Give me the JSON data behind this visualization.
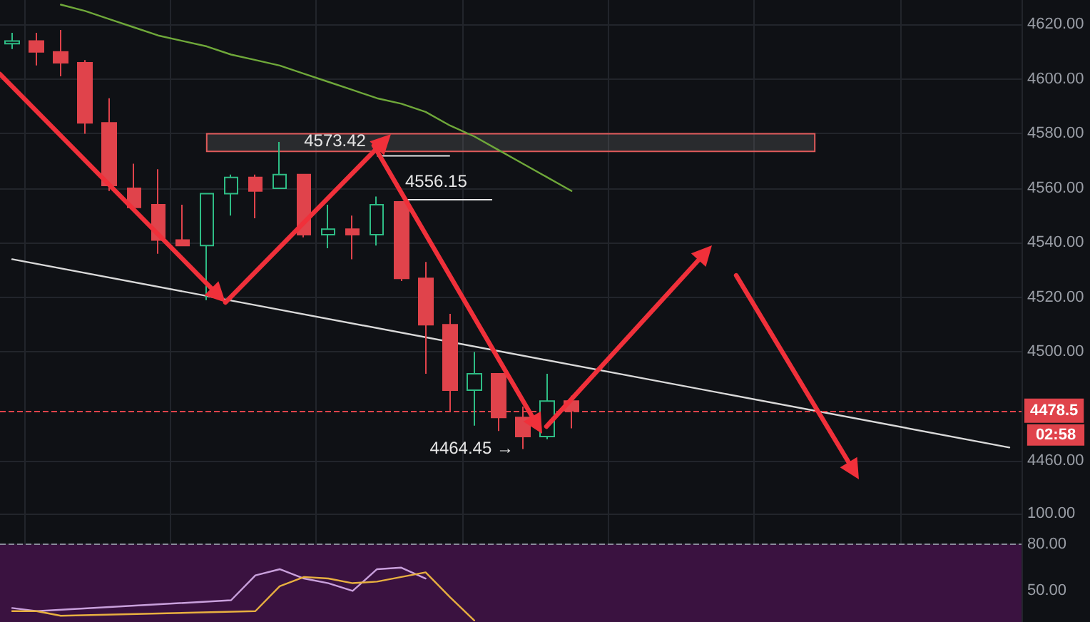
{
  "chart_data": [
    {
      "type": "candlestick",
      "categories": [
        null,
        null,
        null,
        null,
        null,
        null,
        null,
        null,
        null,
        null,
        null,
        null,
        null,
        null,
        null,
        null,
        null,
        null,
        null,
        null,
        null,
        null,
        null,
        null,
        null,
        null,
        null,
        null,
        null,
        null,
        null,
        null,
        null,
        null,
        null,
        null,
        null,
        null,
        null,
        null,
        null,
        null
      ],
      "ohlc": [
        [
          4613,
          4617,
          4611,
          4614
        ],
        [
          4614,
          4617,
          4605,
          4610
        ],
        [
          4610,
          4618,
          4601,
          4606
        ],
        [
          4606,
          4607,
          4580,
          4584
        ],
        [
          4584,
          4593,
          4559,
          4561
        ],
        [
          4560,
          4569,
          4553,
          4553
        ],
        [
          4554,
          4567,
          4536,
          4541
        ],
        [
          4541,
          4554,
          4539,
          4539
        ],
        [
          4539,
          4558,
          4519,
          4558
        ],
        [
          4558,
          4565,
          4550,
          4564
        ],
        [
          4564,
          4565,
          4549,
          4559
        ],
        [
          4560,
          4577,
          4560,
          4565
        ],
        [
          4565,
          4565,
          4542,
          4543
        ],
        [
          4543,
          4554,
          4538,
          4545
        ],
        [
          4545,
          4550,
          4534,
          4543
        ],
        [
          4543,
          4557,
          4539,
          4554
        ],
        [
          4555,
          4555,
          4526,
          4527
        ],
        [
          4527,
          4533,
          4492,
          4510
        ],
        [
          4510,
          4514,
          4478,
          4486
        ],
        [
          4486,
          4500,
          4473,
          4492
        ],
        [
          4492,
          4492,
          4471,
          4476
        ],
        [
          4476,
          4480,
          4464.45,
          4469
        ],
        [
          4469,
          4492,
          4468,
          4482
        ],
        [
          4482,
          4484,
          4472,
          4478.5
        ],
        null,
        null,
        null,
        null,
        null,
        null,
        null,
        null,
        null,
        null,
        null,
        null,
        null,
        null,
        null,
        null,
        null,
        null
      ],
      "colors": [
        "#2ebd85",
        "#e0434b",
        "#e0434b",
        "#e0434b",
        "#e0434b",
        "#e0434b",
        "#e0434b",
        "#e0434b",
        "#2ebd85",
        "#2ebd85",
        "#e0434b",
        "#2ebd85",
        "#e0434b",
        "#2ebd85",
        "#e0434b",
        "#2ebd85",
        "#e0434b",
        "#e0434b",
        "#e0434b",
        "#2ebd85",
        "#e0434b",
        "#e0434b",
        "#2ebd85",
        "#e0434b",
        null,
        null,
        null,
        null,
        null,
        null,
        null,
        null,
        null,
        null,
        null,
        null,
        null,
        null,
        null,
        null,
        null,
        null
      ],
      "series": [
        {
          "type": "line",
          "color": "#6fa83a",
          "values": [
            null,
            null,
            4627.3,
            4625,
            4622,
            4619,
            4616,
            4614,
            4612,
            4609,
            4607,
            4605,
            4602,
            4599,
            4596,
            4593,
            4591,
            4588,
            4583,
            4579,
            4574,
            4569,
            4564,
            4559,
            null,
            null,
            null,
            null,
            null,
            null,
            null,
            null,
            null,
            null,
            null,
            null,
            null,
            null,
            null,
            null,
            null,
            null
          ]
        },
        {
          "type": "line",
          "color": "#d9d9d9",
          "values": [
            4534,
            null,
            null,
            null,
            null,
            null,
            null,
            null,
            null,
            null,
            null,
            null,
            null,
            null,
            null,
            null,
            null,
            null,
            null,
            null,
            null,
            null,
            null,
            null,
            null,
            null,
            null,
            null,
            null,
            null,
            null,
            null,
            null,
            null,
            null,
            null,
            null,
            null,
            null,
            null,
            null,
            4465
          ]
        }
      ],
      "ylim": [
        4446,
        4629
      ],
      "yticks": [
        {
          "value": 4460,
          "label": "4460.00"
        },
        {
          "value": 4500,
          "label": "4500.00"
        },
        {
          "value": 4520,
          "label": "4520.00"
        },
        {
          "value": 4540,
          "label": "4540.00"
        },
        {
          "value": 4560,
          "label": "4560.00"
        },
        {
          "value": 4580,
          "label": "4580.00"
        },
        {
          "value": 4600,
          "label": "4600.00"
        },
        {
          "value": 4620,
          "label": "4620.00"
        }
      ],
      "grid": true,
      "tick_labels": "y",
      "marker": "none",
      "bands": [
        {
          "axis": "y",
          "from": 4573.5,
          "to": 4580,
          "color": "#e05a5a"
        }
      ],
      "ref_lines": [
        {
          "axis": "y",
          "value": 4478.5,
          "label": "4478.5",
          "color": "#e0434b",
          "line_style": "dashed"
        }
      ],
      "annotations": [
        {
          "text": "4573.42",
          "y": 4573.42
        },
        "4556.15",
        "4464.45 →",
        "02:58"
      ]
    },
    {
      "type": "line",
      "categories": [
        null,
        null,
        null,
        null,
        null,
        null,
        null,
        null,
        null,
        null,
        null,
        null,
        null,
        null,
        null,
        null,
        null,
        null,
        null,
        null,
        null,
        null,
        null,
        null,
        null,
        null,
        null,
        null,
        null,
        null,
        null,
        null,
        null,
        null,
        null,
        null,
        null,
        null,
        null,
        null,
        null,
        null
      ],
      "series": [
        {
          "color": "#c9a0dc",
          "values": [
            39,
            37,
            null,
            null,
            null,
            null,
            null,
            null,
            null,
            44,
            60,
            64,
            58,
            55,
            50,
            64,
            65,
            58,
            null,
            null,
            null,
            null,
            null,
            null,
            null,
            null,
            null,
            null,
            null,
            null,
            null,
            null,
            null,
            null,
            null,
            null,
            null,
            null,
            null,
            null,
            null,
            null
          ]
        },
        {
          "color": "#e8b040",
          "values": [
            37,
            37,
            34,
            null,
            null,
            null,
            null,
            null,
            null,
            null,
            37,
            53,
            59,
            58,
            55,
            56,
            59,
            62,
            46,
            31,
            null,
            null,
            null,
            null,
            null,
            null,
            null,
            null,
            null,
            null,
            null,
            null,
            null,
            null,
            null,
            null,
            null,
            null,
            null,
            null,
            null,
            null
          ]
        }
      ],
      "ylim": [
        30,
        109
      ],
      "yticks": [
        {
          "value": 50,
          "label": "50.00"
        },
        {
          "value": 80,
          "label": "80.00"
        },
        {
          "value": 100,
          "label": "100.00"
        }
      ],
      "grid": true,
      "tick_labels": "y",
      "marker": "none",
      "bands": [
        {
          "axis": "y",
          "from": 30,
          "to": 80,
          "color": "#3a1240"
        }
      ],
      "ref_lines": [
        {
          "axis": "y",
          "value": 80,
          "color": "#8a8a9a",
          "line_style": "dashed"
        }
      ]
    }
  ]
}
